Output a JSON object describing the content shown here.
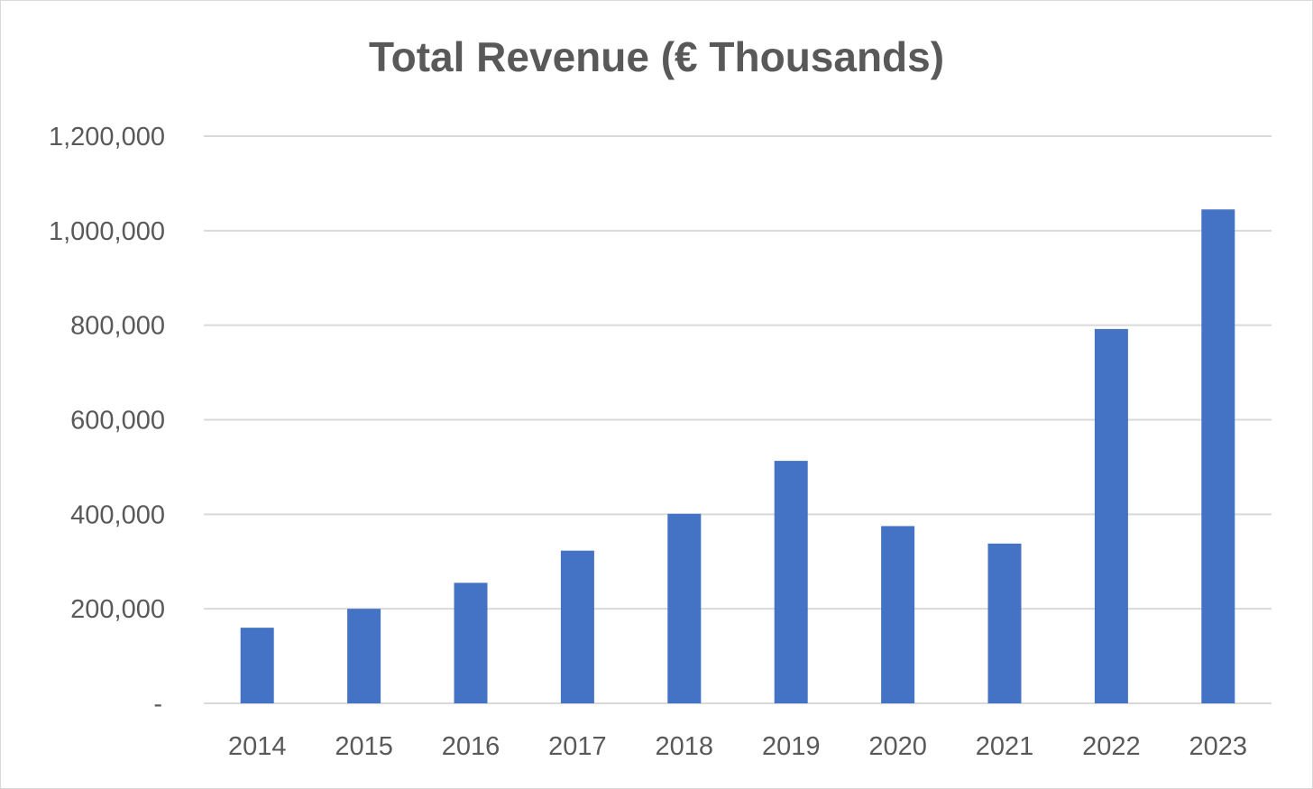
{
  "chart_data": {
    "type": "bar",
    "title": "Total Revenue (€ Thousands)",
    "xlabel": "",
    "ylabel": "",
    "categories": [
      "2014",
      "2015",
      "2016",
      "2017",
      "2018",
      "2019",
      "2020",
      "2021",
      "2022",
      "2023"
    ],
    "series": [
      {
        "values": [
          160000,
          200000,
          255000,
          323000,
          401000,
          513000,
          375000,
          338000,
          792000,
          1045000
        ]
      }
    ],
    "ylim": [
      0,
      1200000
    ],
    "yticks": [
      0,
      200000,
      400000,
      600000,
      800000,
      1000000,
      1200000
    ],
    "ytick_labels": [
      "-",
      "200,000",
      "400,000",
      "600,000",
      "800,000",
      "1,000,000",
      "1,200,000"
    ],
    "grid": true,
    "legend": "none",
    "colors": {
      "bar": "#4472c4",
      "grid": "#d9d9d9",
      "text": "#595959"
    }
  }
}
